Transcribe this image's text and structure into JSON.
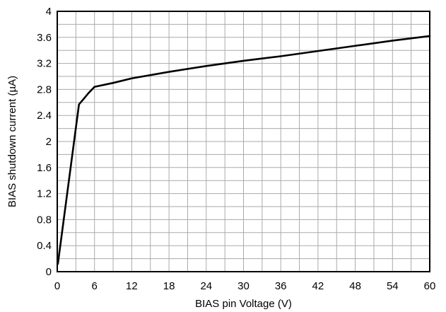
{
  "chart_data": {
    "type": "line",
    "title": "",
    "xlabel": "BIAS pin Voltage (V)",
    "ylabel": "BIAS shutdown current (µA)",
    "xlim": [
      0,
      60
    ],
    "ylim": [
      0,
      4
    ],
    "xticks": [
      0,
      6,
      12,
      18,
      24,
      30,
      36,
      42,
      48,
      54,
      60
    ],
    "yticks": [
      0,
      0.4,
      0.8,
      1.2,
      1.6,
      2,
      2.4,
      2.8,
      3.2,
      3.6,
      4
    ],
    "xtick_labels": [
      "0",
      "6",
      "12",
      "18",
      "24",
      "30",
      "36",
      "42",
      "48",
      "54",
      "60"
    ],
    "ytick_labels": [
      "0",
      "0.4",
      "0.8",
      "1.2",
      "1.6",
      "2",
      "2.4",
      "2.8",
      "3.2",
      "3.6",
      "4"
    ],
    "grid": true,
    "minor_grid": true,
    "line_color": "#000000",
    "series": [
      {
        "x": [
          0.1,
          3.5,
          4.3,
          5.0,
          6.0,
          9,
          12,
          18,
          24,
          30,
          36,
          42,
          48,
          54,
          60
        ],
        "y": [
          0.12,
          2.57,
          2.66,
          2.74,
          2.84,
          2.9,
          2.97,
          3.07,
          3.16,
          3.24,
          3.31,
          3.39,
          3.47,
          3.55,
          3.62
        ]
      }
    ]
  }
}
